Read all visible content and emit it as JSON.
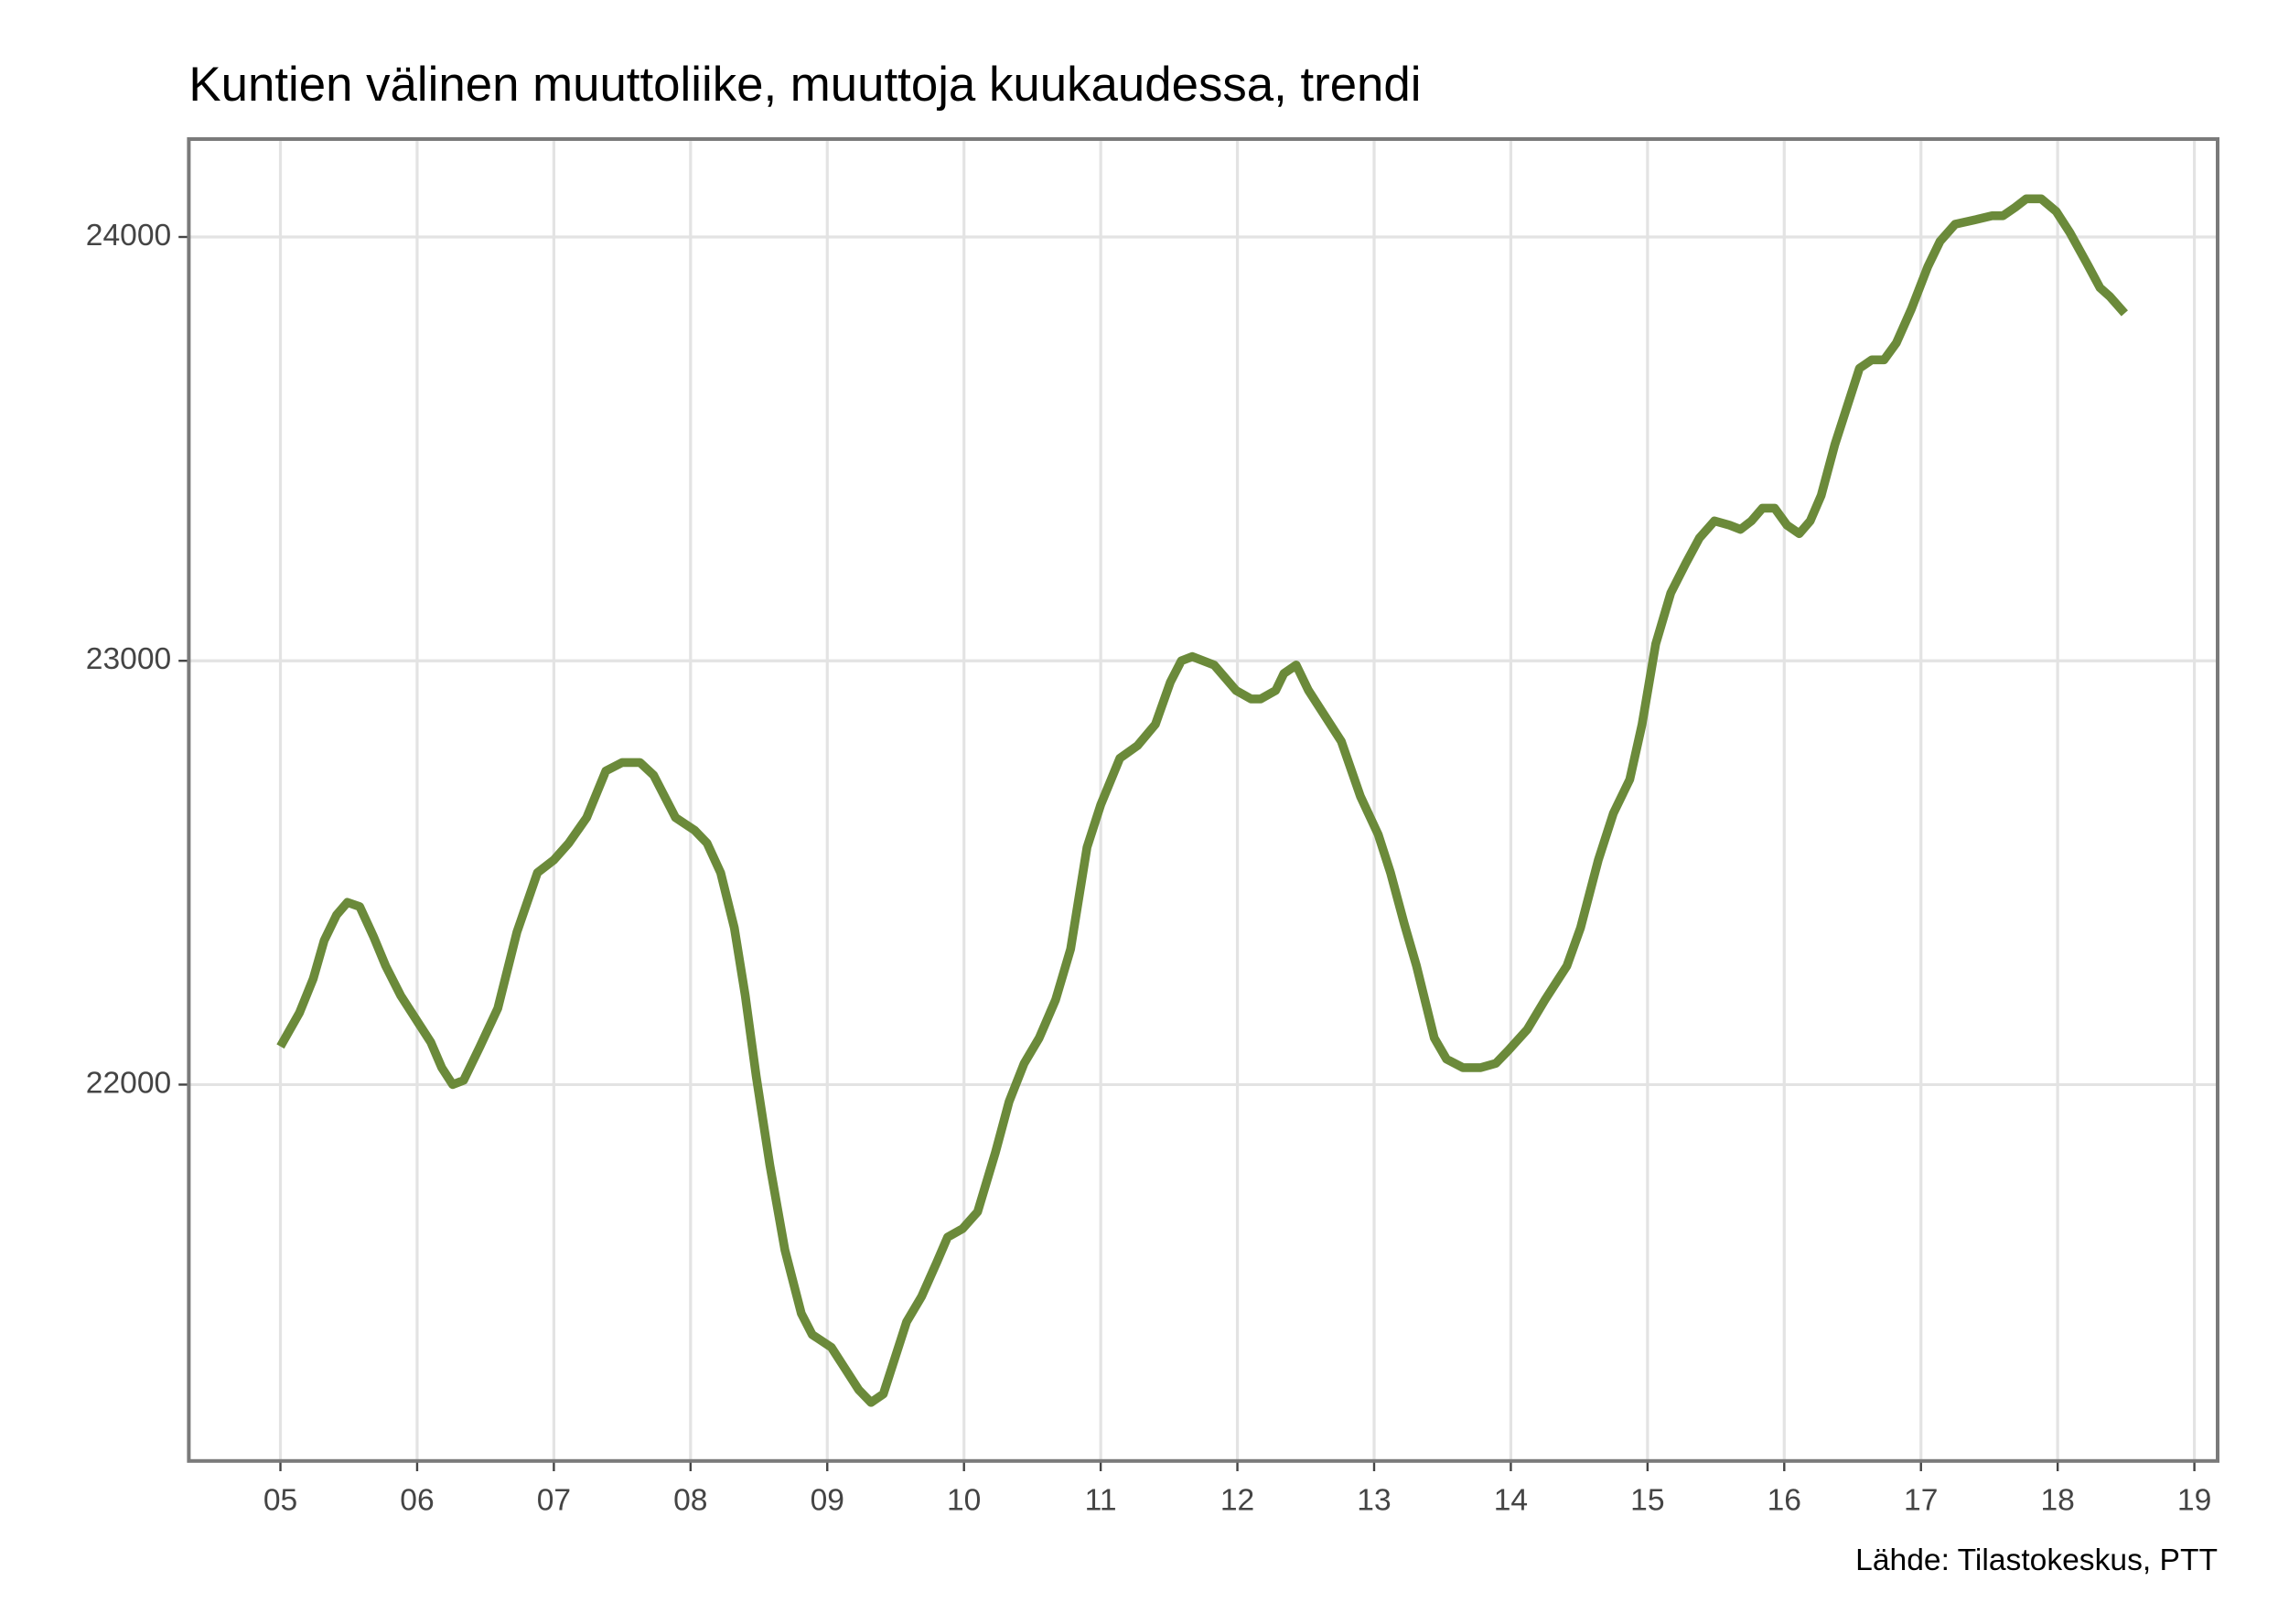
{
  "chart_data": {
    "type": "line",
    "title": "Kuntien välinen muuttoliike, muuttoja kuukaudessa, trendi",
    "source": "Lähde: Tilastokeskus, PTT",
    "x": [
      5.0,
      5.14,
      5.24,
      5.32,
      5.41,
      5.49,
      5.58,
      5.68,
      5.77,
      5.88,
      6.0,
      6.1,
      6.18,
      6.26,
      6.34,
      6.46,
      6.59,
      6.73,
      6.88,
      7.0,
      7.11,
      7.24,
      7.38,
      7.5,
      7.63,
      7.73,
      7.89,
      8.03,
      8.12,
      8.22,
      8.32,
      8.4,
      8.48,
      8.58,
      8.69,
      8.81,
      8.89,
      9.03,
      9.13,
      9.23,
      9.32,
      9.41,
      9.5,
      9.58,
      9.69,
      9.8,
      9.88,
      9.99,
      10.1,
      10.23,
      10.33,
      10.44,
      10.55,
      10.67,
      10.78,
      10.9,
      11.0,
      11.14,
      11.27,
      11.4,
      11.51,
      11.59,
      11.67,
      11.83,
      11.99,
      12.1,
      12.17,
      12.28,
      12.34,
      12.43,
      12.52,
      12.62,
      12.76,
      12.9,
      13.03,
      13.12,
      13.22,
      13.31,
      13.44,
      13.53,
      13.65,
      13.78,
      13.89,
      13.98,
      14.12,
      14.25,
      14.41,
      14.51,
      14.64,
      14.75,
      14.87,
      14.96,
      15.06,
      15.17,
      15.28,
      15.38,
      15.49,
      15.6,
      15.68,
      15.76,
      15.84,
      15.93,
      16.02,
      16.11,
      16.19,
      16.27,
      16.37,
      16.46,
      16.55,
      16.64,
      16.73,
      16.82,
      16.93,
      17.05,
      17.14,
      17.25,
      17.39,
      17.52,
      17.6,
      17.69,
      17.77,
      17.88,
      17.99,
      18.09,
      18.21,
      18.31,
      18.38,
      18.49
    ],
    "series": [
      {
        "name": "Muuttoja kuukaudessa, trendi",
        "color": "#6b8a3a",
        "values": [
          22090,
          22170,
          22250,
          22340,
          22400,
          22430,
          22420,
          22350,
          22280,
          22210,
          22150,
          22100,
          22040,
          22000,
          22010,
          22090,
          22180,
          22360,
          22500,
          22530,
          22570,
          22630,
          22740,
          22760,
          22760,
          22730,
          22630,
          22600,
          22570,
          22500,
          22370,
          22210,
          22020,
          21810,
          21610,
          21460,
          21410,
          21380,
          21330,
          21280,
          21250,
          21270,
          21360,
          21440,
          21500,
          21580,
          21640,
          21660,
          21700,
          21840,
          21960,
          22050,
          22110,
          22200,
          22320,
          22560,
          22660,
          22770,
          22800,
          22850,
          22950,
          23000,
          23010,
          22990,
          22930,
          22910,
          22910,
          22930,
          22970,
          22990,
          22930,
          22880,
          22810,
          22680,
          22590,
          22500,
          22380,
          22280,
          22110,
          22060,
          22040,
          22040,
          22050,
          22080,
          22130,
          22200,
          22280,
          22370,
          22530,
          22640,
          22720,
          22850,
          23040,
          23160,
          23230,
          23290,
          23330,
          23320,
          23310,
          23330,
          23360,
          23360,
          23320,
          23300,
          23330,
          23390,
          23510,
          23600,
          23690,
          23710,
          23710,
          23750,
          23830,
          23930,
          23990,
          24030,
          24040,
          24050,
          24050,
          24070,
          24090,
          24090,
          24060,
          24010,
          23940,
          23880,
          23860,
          23820
        ]
      }
    ],
    "xlim": [
      4.33,
      19.17
    ],
    "ylim": [
      21112,
      24231
    ],
    "xticks": [
      {
        "value": 5,
        "label": "05"
      },
      {
        "value": 6,
        "label": "06"
      },
      {
        "value": 7,
        "label": "07"
      },
      {
        "value": 8,
        "label": "08"
      },
      {
        "value": 9,
        "label": "09"
      },
      10,
      11,
      12,
      13,
      14,
      15,
      16,
      17,
      18,
      19
    ],
    "yticks": [
      22000,
      23000,
      24000
    ],
    "grid": true
  }
}
